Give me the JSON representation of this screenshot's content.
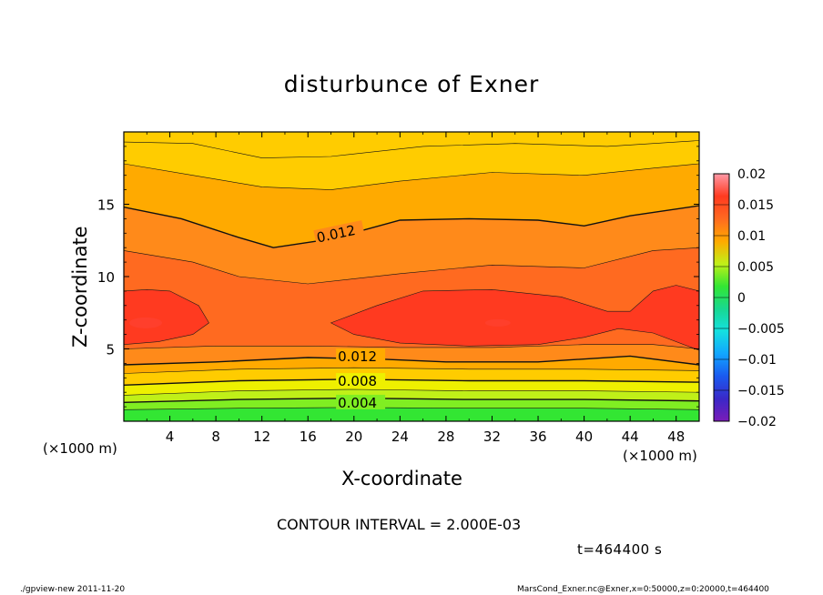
{
  "chart_data": {
    "type": "contour",
    "title": "disturbunce of Exner",
    "xlabel": "X-coordinate",
    "ylabel": "Z-coordinate",
    "x_unit_label": "(×1000 m)",
    "x_range": [
      0,
      50
    ],
    "y_range": [
      0,
      20
    ],
    "x_ticks": [
      4,
      8,
      12,
      16,
      20,
      24,
      28,
      32,
      36,
      40,
      44,
      48
    ],
    "y_ticks": [
      5,
      10,
      15
    ],
    "x_tick_labels": [
      "4",
      "8",
      "12",
      "16",
      "20",
      "24",
      "28",
      "32",
      "36",
      "40",
      "44",
      "48"
    ],
    "y_tick_labels": [
      "5",
      "10",
      "15"
    ],
    "contour_interval": 0.002,
    "contour_interval_label": "CONTOUR INTERVAL = 2.000E-03",
    "time_label": "t=464400 s",
    "contour_labels": [
      {
        "text": "0.012",
        "x": 16.8,
        "y": 12.6,
        "rotation_deg": -12
      },
      {
        "text": "0.012",
        "x": 18.6,
        "y": 4.4,
        "rotation_deg": 0
      },
      {
        "text": "0.008",
        "x": 18.6,
        "y": 2.7,
        "rotation_deg": 0
      },
      {
        "text": "0.004",
        "x": 18.6,
        "y": 1.2,
        "rotation_deg": 0
      }
    ],
    "colorbar": {
      "min": -0.02,
      "max": 0.02,
      "ticks": [
        0.02,
        0.015,
        0.01,
        0.005,
        0,
        -0.005,
        -0.01,
        -0.015,
        -0.02
      ],
      "tick_labels": [
        "0.02",
        "0.015",
        "0.01",
        "0.005",
        "0",
        "−0.005",
        "−0.01",
        "−0.015",
        "−0.02"
      ]
    },
    "colors": {
      "0.000": "#33e633",
      "0.002": "#80ee22",
      "0.004": "#c0f018",
      "0.006": "#eef000",
      "0.008": "#ffcc00",
      "0.010": "#ffaa00",
      "0.012": "#ff8a1a",
      "0.014": "#ff6a20",
      "0.016": "#ff3a20",
      "0.018": "#ff5050"
    },
    "colorbar_colors": [
      "#7a1cb8",
      "#3a28c8",
      "#1a5af0",
      "#12a6ff",
      "#14e0e0",
      "#18d890",
      "#33e633",
      "#c0f018",
      "#ffaa00",
      "#ff6a20",
      "#ff3a20",
      "#ff9aa8"
    ]
  },
  "footer": {
    "left": "./gpview-new   2011-11-20",
    "right": "MarsCond_Exner.nc@Exner,x=0:50000,z=0:20000,t=464400"
  }
}
